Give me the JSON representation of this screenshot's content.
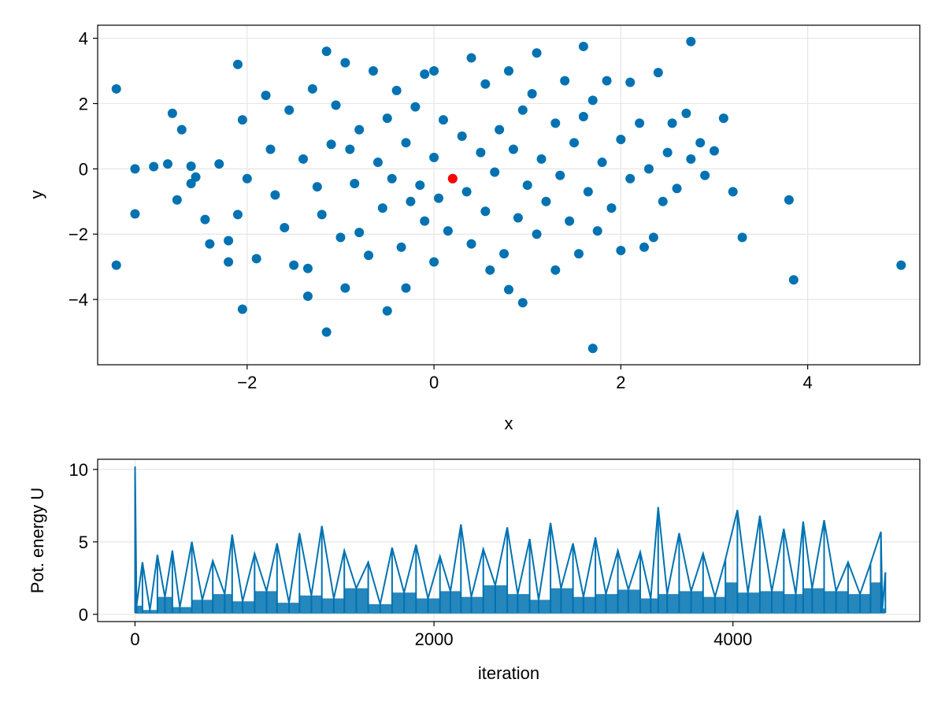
{
  "chart_data": [
    {
      "type": "scatter",
      "xlabel": "x",
      "ylabel": "y",
      "xlim": [
        -3.6,
        5.2
      ],
      "ylim": [
        -6.0,
        4.4
      ],
      "xticks": [
        -2,
        0,
        2,
        4
      ],
      "yticks": [
        -4,
        -2,
        0,
        2,
        4
      ],
      "xtick_labels": [
        "−2",
        "0",
        "2",
        "4"
      ],
      "ytick_labels": [
        "−4",
        "−2",
        "0",
        "2",
        "4"
      ],
      "grid": true,
      "colors": {
        "points": "#0072b2",
        "highlight": "#ff0000"
      },
      "series": [
        {
          "points": [
            [
              -3.4,
              2.45
            ],
            [
              -3.4,
              -2.95
            ],
            [
              -3.2,
              0.0
            ],
            [
              -3.2,
              -1.38
            ],
            [
              -3.0,
              0.07
            ],
            [
              -2.85,
              0.15
            ],
            [
              -2.8,
              1.7
            ],
            [
              -2.7,
              1.2
            ],
            [
              -2.75,
              -0.95
            ],
            [
              -2.6,
              0.08
            ],
            [
              -2.55,
              -0.25
            ],
            [
              -2.6,
              -0.45
            ],
            [
              -2.45,
              -1.55
            ],
            [
              -2.4,
              -2.3
            ],
            [
              -2.3,
              0.15
            ],
            [
              -2.2,
              -2.2
            ],
            [
              -2.2,
              -2.85
            ],
            [
              -2.1,
              3.2
            ],
            [
              -2.05,
              1.5
            ],
            [
              -2.05,
              -4.3
            ],
            [
              -2.0,
              -0.3
            ],
            [
              -2.1,
              -1.4
            ],
            [
              -1.9,
              -2.75
            ],
            [
              -1.8,
              2.25
            ],
            [
              -1.75,
              0.6
            ],
            [
              -1.7,
              -0.8
            ],
            [
              -1.6,
              -1.8
            ],
            [
              -1.55,
              1.8
            ],
            [
              -1.5,
              -2.95
            ],
            [
              -1.4,
              0.3
            ],
            [
              -1.35,
              -3.05
            ],
            [
              -1.35,
              -3.9
            ],
            [
              -1.3,
              2.45
            ],
            [
              -1.25,
              -0.55
            ],
            [
              -1.2,
              -1.4
            ],
            [
              -1.15,
              3.6
            ],
            [
              -1.15,
              -5.0
            ],
            [
              -1.1,
              0.75
            ],
            [
              -1.05,
              1.95
            ],
            [
              -1.0,
              -2.1
            ],
            [
              -0.95,
              3.25
            ],
            [
              -0.95,
              -3.65
            ],
            [
              -0.9,
              0.6
            ],
            [
              -0.85,
              -0.45
            ],
            [
              -0.8,
              -1.95
            ],
            [
              -0.8,
              1.2
            ],
            [
              -0.7,
              -2.65
            ],
            [
              -0.65,
              3.0
            ],
            [
              -0.6,
              0.2
            ],
            [
              -0.55,
              -1.2
            ],
            [
              -0.5,
              1.55
            ],
            [
              -0.5,
              -4.35
            ],
            [
              -0.45,
              -0.3
            ],
            [
              -0.4,
              2.4
            ],
            [
              -0.35,
              -2.4
            ],
            [
              -0.3,
              0.8
            ],
            [
              -0.3,
              -3.65
            ],
            [
              -0.25,
              -1.0
            ],
            [
              -0.2,
              1.9
            ],
            [
              -0.15,
              -0.5
            ],
            [
              -0.1,
              2.9
            ],
            [
              -0.1,
              -1.6
            ],
            [
              0.0,
              0.35
            ],
            [
              0.0,
              3.0
            ],
            [
              0.0,
              -2.85
            ],
            [
              0.05,
              -0.9
            ],
            [
              0.1,
              1.5
            ],
            [
              0.15,
              -1.9
            ],
            [
              0.2,
              -0.3
            ],
            [
              0.3,
              1.0
            ],
            [
              0.35,
              -0.7
            ],
            [
              0.4,
              3.4
            ],
            [
              0.4,
              -2.3
            ],
            [
              0.5,
              0.5
            ],
            [
              0.55,
              -1.3
            ],
            [
              0.55,
              2.6
            ],
            [
              0.6,
              -3.1
            ],
            [
              0.65,
              -0.1
            ],
            [
              0.7,
              1.2
            ],
            [
              0.75,
              -2.6
            ],
            [
              0.8,
              3.0
            ],
            [
              0.8,
              -3.7
            ],
            [
              0.85,
              0.6
            ],
            [
              0.9,
              -1.5
            ],
            [
              0.95,
              1.8
            ],
            [
              0.95,
              -4.1
            ],
            [
              1.0,
              -0.5
            ],
            [
              1.05,
              2.3
            ],
            [
              1.1,
              -2.0
            ],
            [
              1.1,
              3.55
            ],
            [
              1.15,
              0.3
            ],
            [
              1.2,
              -1.0
            ],
            [
              1.3,
              1.4
            ],
            [
              1.3,
              -3.1
            ],
            [
              1.35,
              -0.2
            ],
            [
              1.4,
              2.7
            ],
            [
              1.45,
              -1.6
            ],
            [
              1.5,
              0.8
            ],
            [
              1.55,
              -2.6
            ],
            [
              1.6,
              1.6
            ],
            [
              1.6,
              3.75
            ],
            [
              1.65,
              -0.7
            ],
            [
              1.7,
              2.1
            ],
            [
              1.7,
              -5.5
            ],
            [
              1.75,
              -1.9
            ],
            [
              1.8,
              0.2
            ],
            [
              1.85,
              2.7
            ],
            [
              1.9,
              -1.2
            ],
            [
              2.0,
              0.9
            ],
            [
              2.0,
              -2.5
            ],
            [
              2.1,
              2.65
            ],
            [
              2.1,
              -0.3
            ],
            [
              2.2,
              1.4
            ],
            [
              2.25,
              -2.4
            ],
            [
              2.3,
              0.0
            ],
            [
              2.35,
              -2.1
            ],
            [
              2.4,
              2.95
            ],
            [
              2.45,
              -1.0
            ],
            [
              2.5,
              0.5
            ],
            [
              2.55,
              1.4
            ],
            [
              2.6,
              -0.6
            ],
            [
              2.7,
              1.7
            ],
            [
              2.75,
              0.3
            ],
            [
              2.75,
              3.9
            ],
            [
              2.85,
              0.8
            ],
            [
              2.9,
              -0.2
            ],
            [
              3.0,
              0.55
            ],
            [
              3.1,
              1.55
            ],
            [
              3.2,
              -0.7
            ],
            [
              3.3,
              -2.1
            ],
            [
              3.8,
              -0.95
            ],
            [
              3.85,
              -3.4
            ],
            [
              5.0,
              -2.95
            ]
          ]
        },
        {
          "points": [
            [
              0.2,
              -0.3
            ]
          ]
        }
      ]
    },
    {
      "type": "line",
      "xlabel": "iteration",
      "ylabel": "Pot. energy U",
      "xlim": [
        -250,
        5250
      ],
      "ylim": [
        -0.5,
        10.7
      ],
      "xticks": [
        0,
        2000,
        4000
      ],
      "yticks": [
        0,
        5,
        10
      ],
      "xtick_labels": [
        "0",
        "2000",
        "4000"
      ],
      "ytick_labels": [
        "0",
        "5",
        "10"
      ],
      "grid": true,
      "colors": {
        "line": "#0072b2"
      },
      "series": [
        {
          "points": [
            [
              0,
              10.2
            ],
            [
              10,
              0.6
            ],
            [
              50,
              3.6
            ],
            [
              100,
              0.3
            ],
            [
              150,
              4.1
            ],
            [
              200,
              1.2
            ],
            [
              250,
              4.4
            ],
            [
              300,
              0.5
            ],
            [
              380,
              5.0
            ],
            [
              450,
              1.0
            ],
            [
              520,
              3.7
            ],
            [
              600,
              1.4
            ],
            [
              650,
              5.5
            ],
            [
              720,
              0.9
            ],
            [
              800,
              4.2
            ],
            [
              880,
              1.6
            ],
            [
              950,
              4.9
            ],
            [
              1030,
              0.8
            ],
            [
              1100,
              5.6
            ],
            [
              1180,
              1.3
            ],
            [
              1250,
              6.1
            ],
            [
              1330,
              1.1
            ],
            [
              1400,
              4.4
            ],
            [
              1480,
              1.8
            ],
            [
              1560,
              3.6
            ],
            [
              1640,
              0.7
            ],
            [
              1720,
              4.6
            ],
            [
              1800,
              1.5
            ],
            [
              1880,
              4.8
            ],
            [
              1960,
              1.1
            ],
            [
              2040,
              4.0
            ],
            [
              2110,
              1.6
            ],
            [
              2180,
              6.2
            ],
            [
              2250,
              1.2
            ],
            [
              2330,
              4.5
            ],
            [
              2410,
              2.0
            ],
            [
              2490,
              6.0
            ],
            [
              2560,
              1.4
            ],
            [
              2640,
              5.2
            ],
            [
              2700,
              1.0
            ],
            [
              2780,
              6.3
            ],
            [
              2850,
              1.8
            ],
            [
              2930,
              4.9
            ],
            [
              3000,
              1.2
            ],
            [
              3080,
              5.3
            ],
            [
              3150,
              1.4
            ],
            [
              3230,
              4.4
            ],
            [
              3300,
              1.7
            ],
            [
              3380,
              4.3
            ],
            [
              3450,
              1.1
            ],
            [
              3500,
              7.4
            ],
            [
              3560,
              1.4
            ],
            [
              3640,
              5.6
            ],
            [
              3720,
              1.6
            ],
            [
              3800,
              4.2
            ],
            [
              3880,
              1.2
            ],
            [
              3950,
              3.8
            ],
            [
              4030,
              7.2
            ],
            [
              4100,
              1.5
            ],
            [
              4180,
              6.8
            ],
            [
              4260,
              1.6
            ],
            [
              4340,
              5.9
            ],
            [
              4420,
              1.4
            ],
            [
              4470,
              6.4
            ],
            [
              4530,
              1.8
            ],
            [
              4610,
              6.5
            ],
            [
              4690,
              1.6
            ],
            [
              4770,
              3.6
            ],
            [
              4850,
              1.4
            ],
            [
              4920,
              3.5
            ],
            [
              4990,
              5.7
            ],
            [
              5000,
              0.4
            ],
            [
              5020,
              2.9
            ]
          ]
        }
      ]
    }
  ]
}
